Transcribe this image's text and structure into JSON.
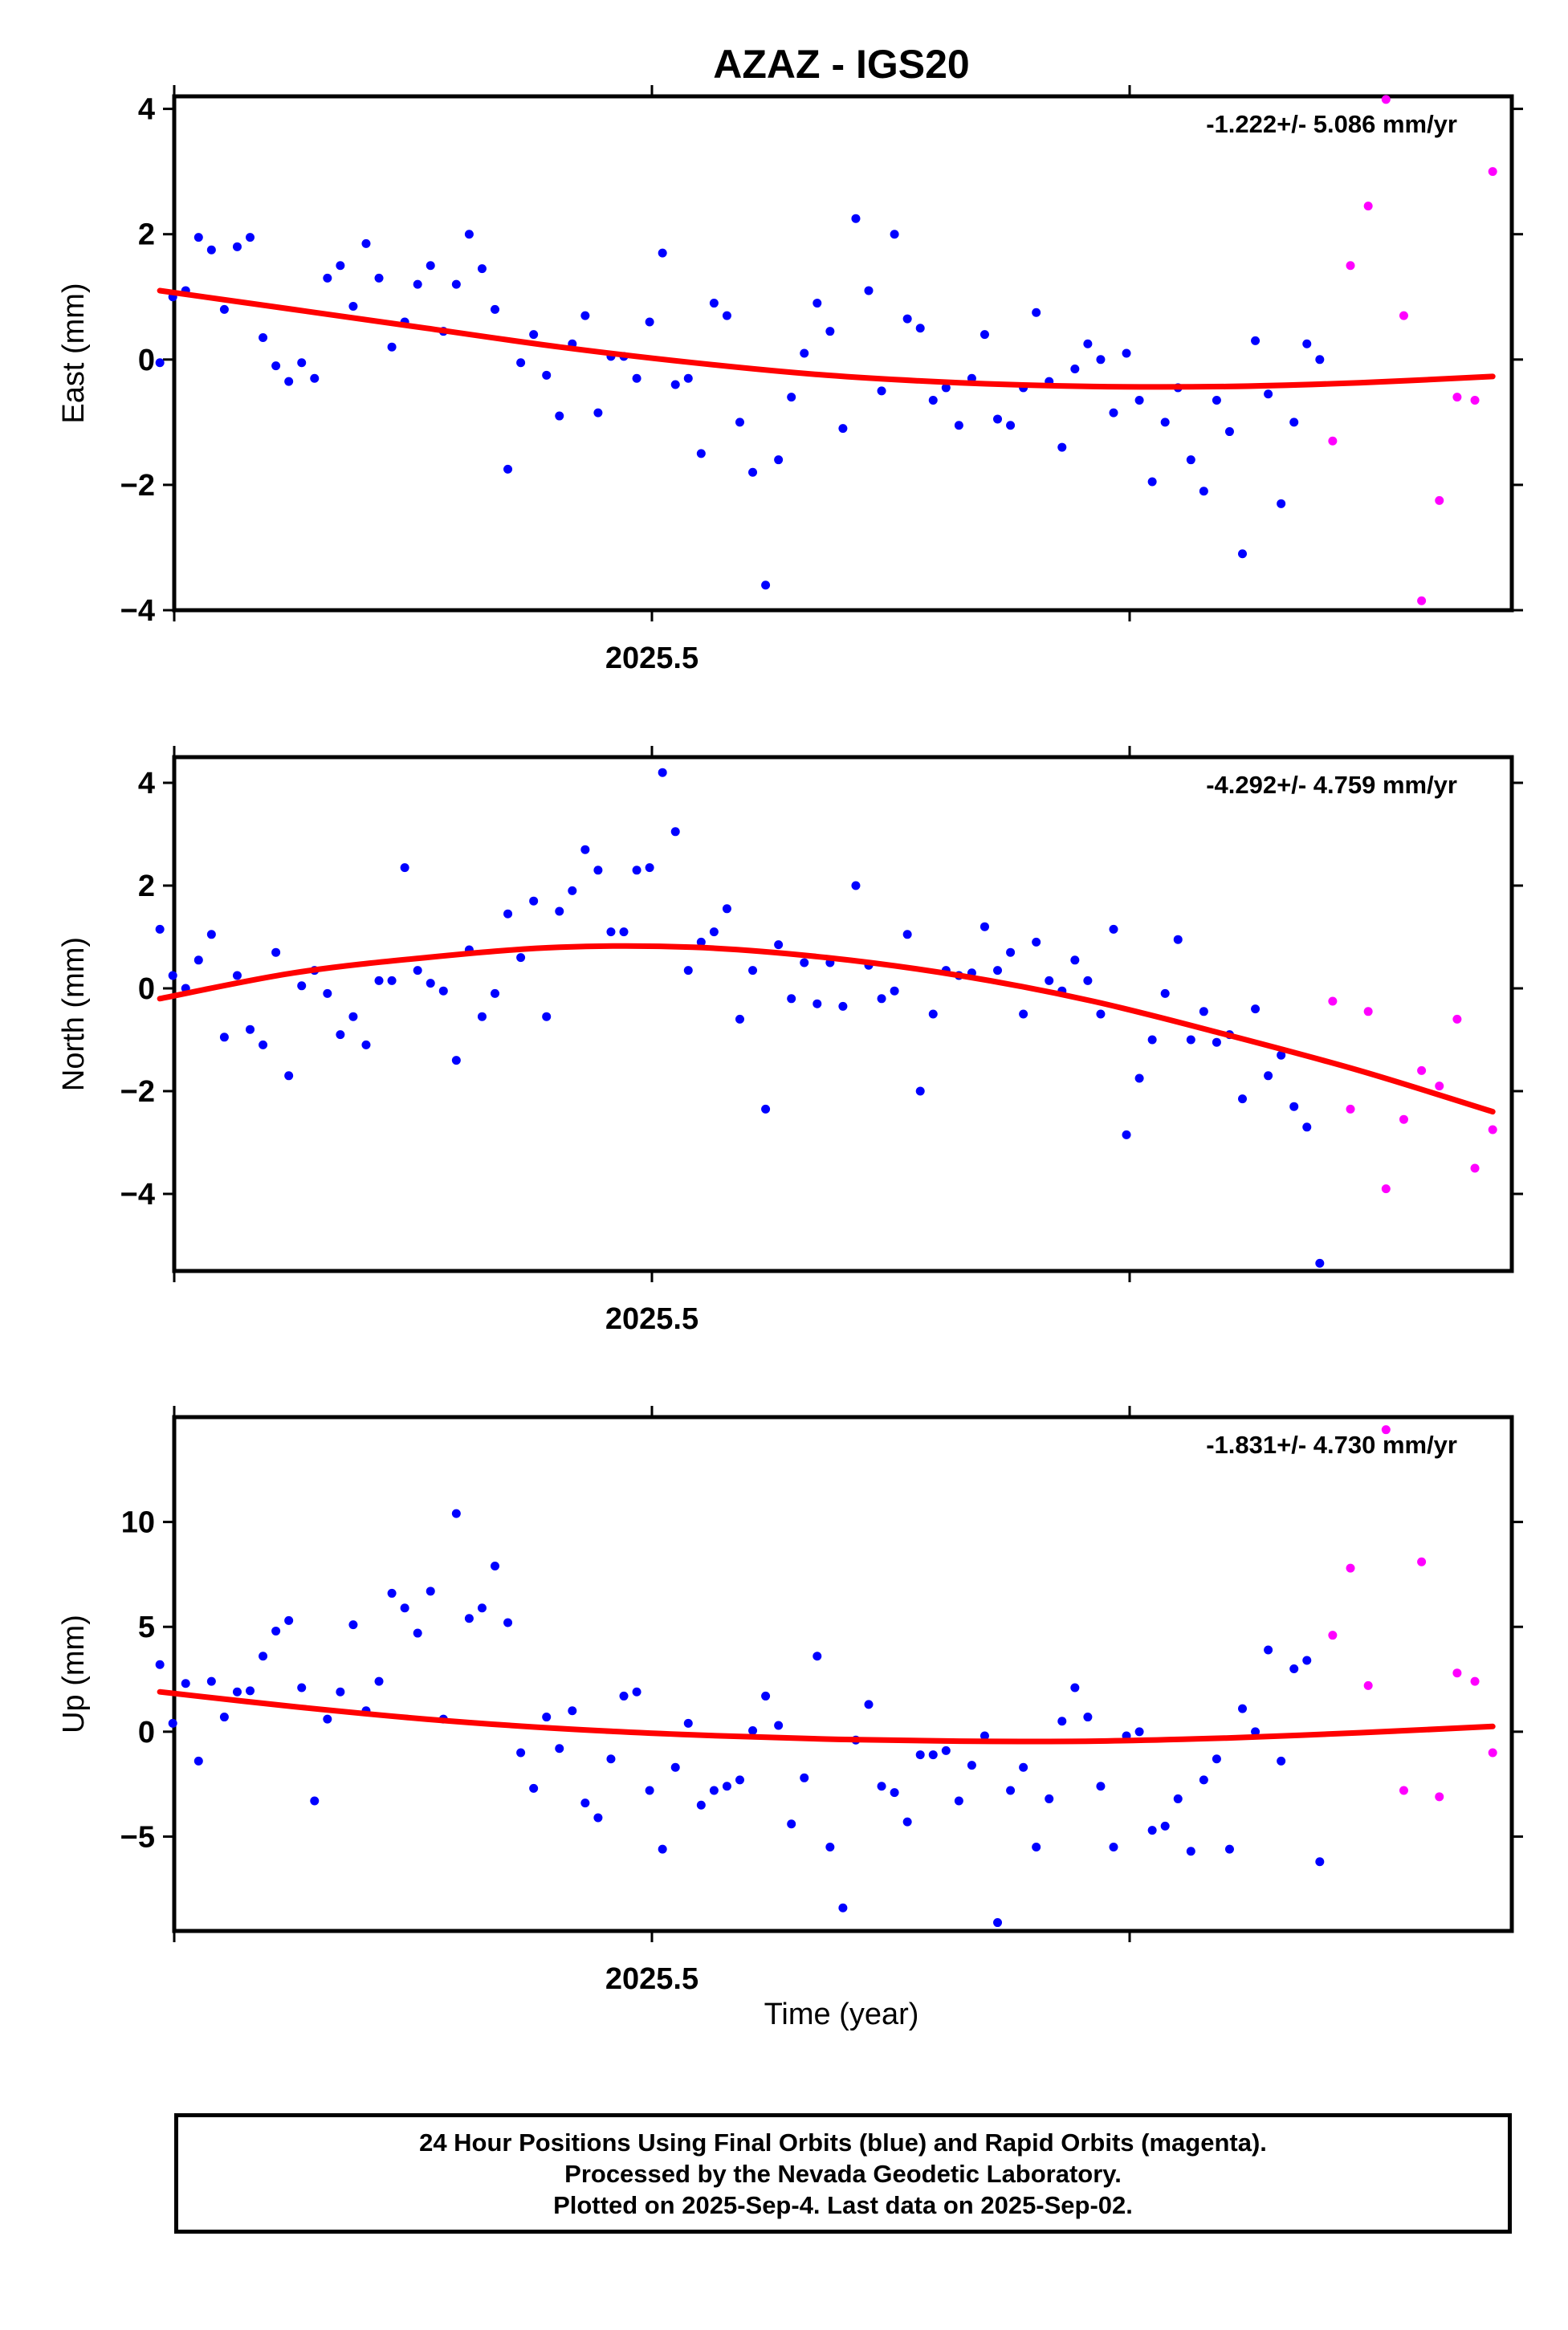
{
  "figure": {
    "title": "AZAZ - IGS20",
    "xlabel": "Time (year)",
    "legend_lines": [
      "24 Hour Positions Using Final Orbits (blue) and Rapid Orbits (magenta).",
      "Processed by the Nevada Geodetic Laboratory.",
      "Plotted on 2025-Sep-4. Last data on 2025-Sep-02."
    ],
    "colors": {
      "final": "#0000ff",
      "rapid": "#ff00ff",
      "fit": "#ff0000"
    }
  },
  "chart_data": [
    {
      "type": "scatter",
      "ylabel": "East (mm)",
      "rate_label": "-1.222+/- 5.086 mm/yr",
      "xlim": [
        2025.4,
        2025.68
      ],
      "ylim": [
        -4,
        4.2
      ],
      "yticks": [
        4,
        2,
        0,
        -2,
        -4
      ],
      "xtick_labels": [
        {
          "value": 2025.5,
          "label": "2025.5"
        }
      ],
      "series": [
        {
          "color": "#0000ff",
          "y": [
            -0.05,
            1.0,
            1.1,
            1.95,
            1.75,
            0.8,
            1.8,
            1.95,
            0.35,
            -0.1,
            -0.35,
            -0.05,
            -0.3,
            1.3,
            1.5,
            0.85,
            1.85,
            1.3,
            0.2,
            0.6,
            1.2,
            1.5,
            0.45,
            1.2,
            2.0,
            1.45,
            0.8,
            -1.75,
            -0.05,
            0.4,
            -0.25,
            -0.9,
            0.25,
            0.7,
            -0.85,
            0.05,
            0.05,
            -0.3,
            0.6,
            1.7,
            -0.4,
            -0.3,
            -1.5,
            0.9,
            0.7,
            -1.0,
            -1.8,
            -3.6,
            -1.6,
            -0.6,
            0.1,
            0.9,
            0.45,
            -1.1,
            2.25,
            1.1,
            -0.5,
            2.0,
            0.65,
            0.5,
            -0.65,
            -0.45,
            -1.05,
            -0.3,
            0.4,
            -0.95,
            -1.05,
            -0.45,
            0.75,
            -0.35,
            -1.4,
            -0.15,
            0.25,
            0.0,
            -0.85,
            0.1,
            -0.65,
            -1.95,
            -1.0,
            -0.45,
            -1.6,
            -2.1,
            -0.65,
            -1.15,
            -3.1,
            0.3,
            -0.55,
            -2.3,
            -1.0,
            0.25,
            0.0
          ]
        },
        {
          "color": "#ff00ff",
          "y": [
            -1.3,
            1.5,
            2.45,
            4.15,
            0.7,
            -3.85,
            -2.25,
            -0.6,
            -0.65,
            3.0
          ]
        }
      ],
      "fit": [
        1.1,
        0.8,
        0.5,
        0.2,
        -0.05,
        -0.25,
        -0.37,
        -0.43,
        -0.43,
        -0.37,
        -0.27
      ]
    },
    {
      "type": "scatter",
      "ylabel": "North (mm)",
      "rate_label": "-4.292+/- 4.759 mm/yr",
      "xlim": [
        2025.4,
        2025.68
      ],
      "ylim": [
        -5.5,
        4.5
      ],
      "yticks": [
        4,
        2,
        0,
        -2,
        -4
      ],
      "xtick_labels": [
        {
          "value": 2025.5,
          "label": "2025.5"
        }
      ],
      "series": [
        {
          "color": "#0000ff",
          "y": [
            1.15,
            0.25,
            0.0,
            0.55,
            1.05,
            -0.95,
            0.25,
            -0.8,
            -1.1,
            0.7,
            -1.7,
            0.05,
            0.35,
            -0.1,
            -0.9,
            -0.55,
            -1.1,
            0.15,
            0.15,
            2.35,
            0.35,
            0.1,
            -0.05,
            -1.4,
            0.75,
            -0.55,
            -0.1,
            1.45,
            0.6,
            1.7,
            -0.55,
            1.5,
            1.9,
            2.7,
            2.3,
            1.1,
            1.1,
            2.3,
            2.35,
            4.2,
            3.05,
            0.35,
            0.9,
            1.1,
            1.55,
            -0.6,
            0.35,
            -2.35,
            0.85,
            -0.2,
            0.5,
            -0.3,
            0.5,
            -0.35,
            2.0,
            0.45,
            -0.2,
            -0.05,
            1.05,
            -2.0,
            -0.5,
            0.35,
            0.25,
            0.3,
            1.2,
            0.35,
            0.7,
            -0.5,
            0.9,
            0.15,
            -0.05,
            0.55,
            0.15,
            -0.5,
            1.15,
            -2.85,
            -1.75,
            -1.0,
            -0.1,
            0.95,
            -1.0,
            -0.45,
            -1.05,
            -0.9,
            -2.15,
            -0.4,
            -1.7,
            -1.3,
            -2.3,
            -2.7,
            -5.35
          ]
        },
        {
          "color": "#ff00ff",
          "y": [
            -0.25,
            -2.35,
            -0.45,
            -3.9,
            -2.55,
            -1.6,
            -1.9,
            -0.6,
            -3.5,
            -2.75
          ]
        }
      ],
      "fit": [
        -0.2,
        0.3,
        0.6,
        0.8,
        0.8,
        0.6,
        0.25,
        -0.25,
        -0.9,
        -1.6,
        -2.4
      ]
    },
    {
      "type": "scatter",
      "ylabel": "Up (mm)",
      "rate_label": "-1.831+/- 4.730 mm/yr",
      "xlim": [
        2025.4,
        2025.68
      ],
      "ylim": [
        -9.5,
        15
      ],
      "yticks": [
        10,
        5,
        0,
        -5
      ],
      "xtick_labels": [
        {
          "value": 2025.5,
          "label": "2025.5"
        }
      ],
      "series": [
        {
          "color": "#0000ff",
          "y": [
            3.2,
            0.4,
            2.3,
            -1.4,
            2.4,
            0.7,
            1.9,
            1.95,
            3.6,
            4.8,
            5.3,
            2.1,
            -3.3,
            0.6,
            1.9,
            5.1,
            1.0,
            2.4,
            6.6,
            5.9,
            4.7,
            6.7,
            0.6,
            10.4,
            5.4,
            5.9,
            7.9,
            5.2,
            -1.0,
            -2.7,
            0.7,
            -0.8,
            1.0,
            -3.4,
            -4.1,
            -1.3,
            1.7,
            1.9,
            -2.8,
            -5.6,
            -1.7,
            0.4,
            -3.5,
            -2.8,
            -2.6,
            -2.3,
            0.05,
            1.7,
            0.3,
            -4.4,
            -2.2,
            3.6,
            -5.5,
            -8.4,
            -0.4,
            1.3,
            -2.6,
            -2.9,
            -4.3,
            -1.1,
            -1.1,
            -0.9,
            -3.3,
            -1.6,
            -0.2,
            -9.1,
            -2.8,
            -1.7,
            -5.5,
            -3.2,
            0.5,
            2.1,
            0.7,
            -2.6,
            -5.5,
            -0.2,
            0.0,
            -4.7,
            -4.5,
            -3.2,
            -5.7,
            -2.3,
            -1.3,
            -5.6,
            1.1,
            0.0,
            3.9,
            -1.4,
            3.0,
            3.4,
            -6.2
          ]
        },
        {
          "color": "#ff00ff",
          "y": [
            4.6,
            7.8,
            2.2,
            14.4,
            -2.8,
            8.1,
            -3.1,
            2.8,
            2.4,
            -1.0
          ]
        }
      ],
      "fit": [
        1.9,
        1.2,
        0.6,
        0.15,
        -0.15,
        -0.35,
        -0.45,
        -0.45,
        -0.3,
        -0.05,
        0.25
      ]
    }
  ]
}
